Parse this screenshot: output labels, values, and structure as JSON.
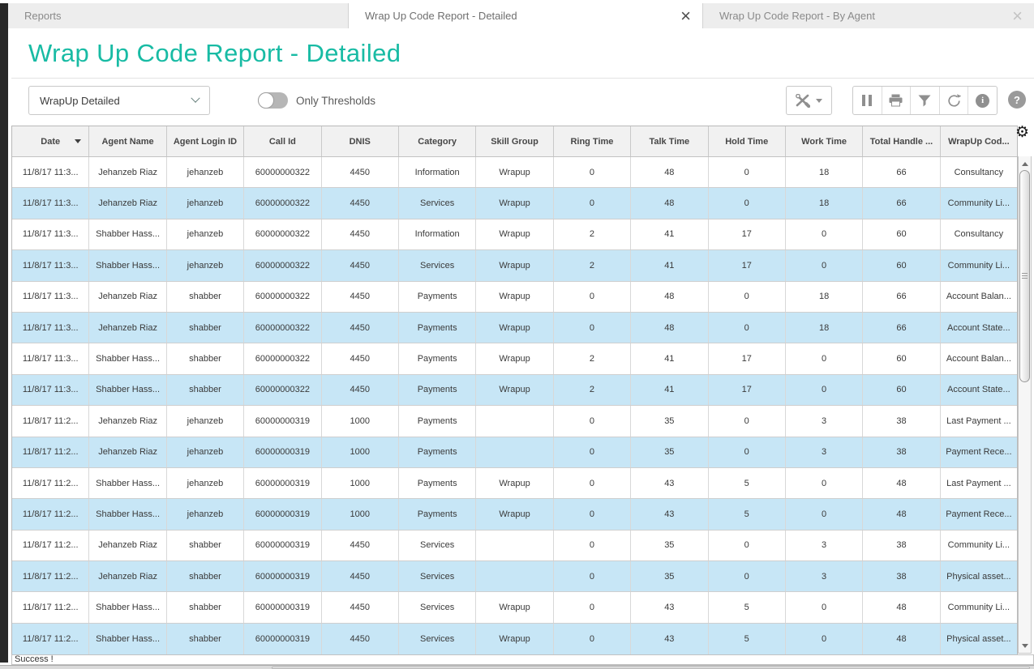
{
  "window": {
    "tabs": [
      {
        "label": "Reports",
        "active": false,
        "closable": false
      },
      {
        "label": "Wrap Up Code Report - Detailed",
        "active": true,
        "closable": true
      },
      {
        "label": "Wrap Up Code Report - By Agent",
        "active": false,
        "closable": true
      }
    ]
  },
  "page": {
    "title": "Wrap Up Code Report - Detailed"
  },
  "controls": {
    "report_view_selector": {
      "value": "WrapUp Detailed"
    },
    "only_thresholds_toggle": {
      "label": "Only Thresholds",
      "on": false
    },
    "tools_button": {
      "icon": "tools-icon"
    },
    "action_buttons": [
      "pause",
      "print",
      "filter",
      "refresh",
      "info"
    ],
    "help_button": {
      "label": "?"
    }
  },
  "table": {
    "sort": {
      "column": "Date",
      "direction": "desc"
    },
    "columns": [
      "Date",
      "Agent Name",
      "Agent Login ID",
      "Call Id",
      "DNIS",
      "Category",
      "Skill Group",
      "Ring Time",
      "Talk Time",
      "Hold Time",
      "Work Time",
      "Total Handle ...",
      "WrapUp Cod..."
    ],
    "rows": [
      [
        "11/8/17 11:3...",
        "Jehanzeb Riaz",
        "jehanzeb",
        "60000000322",
        "4450",
        "Information",
        "Wrapup",
        "0",
        "48",
        "0",
        "18",
        "66",
        "Consultancy"
      ],
      [
        "11/8/17 11:3...",
        "Jehanzeb Riaz",
        "jehanzeb",
        "60000000322",
        "4450",
        "Services",
        "Wrapup",
        "0",
        "48",
        "0",
        "18",
        "66",
        "Community Li..."
      ],
      [
        "11/8/17 11:3...",
        "Shabber Hass...",
        "jehanzeb",
        "60000000322",
        "4450",
        "Information",
        "Wrapup",
        "2",
        "41",
        "17",
        "0",
        "60",
        "Consultancy"
      ],
      [
        "11/8/17 11:3...",
        "Shabber Hass...",
        "jehanzeb",
        "60000000322",
        "4450",
        "Services",
        "Wrapup",
        "2",
        "41",
        "17",
        "0",
        "60",
        "Community Li..."
      ],
      [
        "11/8/17 11:3...",
        "Jehanzeb Riaz",
        "shabber",
        "60000000322",
        "4450",
        "Payments",
        "Wrapup",
        "0",
        "48",
        "0",
        "18",
        "66",
        "Account Balan..."
      ],
      [
        "11/8/17 11:3...",
        "Jehanzeb Riaz",
        "shabber",
        "60000000322",
        "4450",
        "Payments",
        "Wrapup",
        "0",
        "48",
        "0",
        "18",
        "66",
        "Account State..."
      ],
      [
        "11/8/17 11:3...",
        "Shabber Hass...",
        "shabber",
        "60000000322",
        "4450",
        "Payments",
        "Wrapup",
        "2",
        "41",
        "17",
        "0",
        "60",
        "Account Balan..."
      ],
      [
        "11/8/17 11:3...",
        "Shabber Hass...",
        "shabber",
        "60000000322",
        "4450",
        "Payments",
        "Wrapup",
        "2",
        "41",
        "17",
        "0",
        "60",
        "Account State..."
      ],
      [
        "11/8/17 11:2...",
        "Jehanzeb Riaz",
        "jehanzeb",
        "60000000319",
        "1000",
        "Payments",
        "",
        "0",
        "35",
        "0",
        "3",
        "38",
        "Last Payment ..."
      ],
      [
        "11/8/17 11:2...",
        "Jehanzeb Riaz",
        "jehanzeb",
        "60000000319",
        "1000",
        "Payments",
        "",
        "0",
        "35",
        "0",
        "3",
        "38",
        "Payment Rece..."
      ],
      [
        "11/8/17 11:2...",
        "Shabber Hass...",
        "jehanzeb",
        "60000000319",
        "1000",
        "Payments",
        "Wrapup",
        "0",
        "43",
        "5",
        "0",
        "48",
        "Last Payment ..."
      ],
      [
        "11/8/17 11:2...",
        "Shabber Hass...",
        "jehanzeb",
        "60000000319",
        "1000",
        "Payments",
        "Wrapup",
        "0",
        "43",
        "5",
        "0",
        "48",
        "Payment Rece..."
      ],
      [
        "11/8/17 11:2...",
        "Jehanzeb Riaz",
        "shabber",
        "60000000319",
        "4450",
        "Services",
        "",
        "0",
        "35",
        "0",
        "3",
        "38",
        "Community Li..."
      ],
      [
        "11/8/17 11:2...",
        "Jehanzeb Riaz",
        "shabber",
        "60000000319",
        "4450",
        "Services",
        "",
        "0",
        "35",
        "0",
        "3",
        "38",
        "Physical asset..."
      ],
      [
        "11/8/17 11:2...",
        "Shabber Hass...",
        "shabber",
        "60000000319",
        "4450",
        "Services",
        "Wrapup",
        "0",
        "43",
        "5",
        "0",
        "48",
        "Community Li..."
      ],
      [
        "11/8/17 11:2...",
        "Shabber Hass...",
        "shabber",
        "60000000319",
        "4450",
        "Services",
        "Wrapup",
        "0",
        "43",
        "5",
        "0",
        "48",
        "Physical asset..."
      ]
    ]
  },
  "status_bar": {
    "text": "Success !"
  },
  "colors": {
    "accent_teal": "#18bba4",
    "alt_row_blue": "#c7e6f6",
    "header_bg": "#f1f1f1",
    "tab_bar_bg": "#ededed",
    "icon_gray": "#8f8f8f"
  }
}
